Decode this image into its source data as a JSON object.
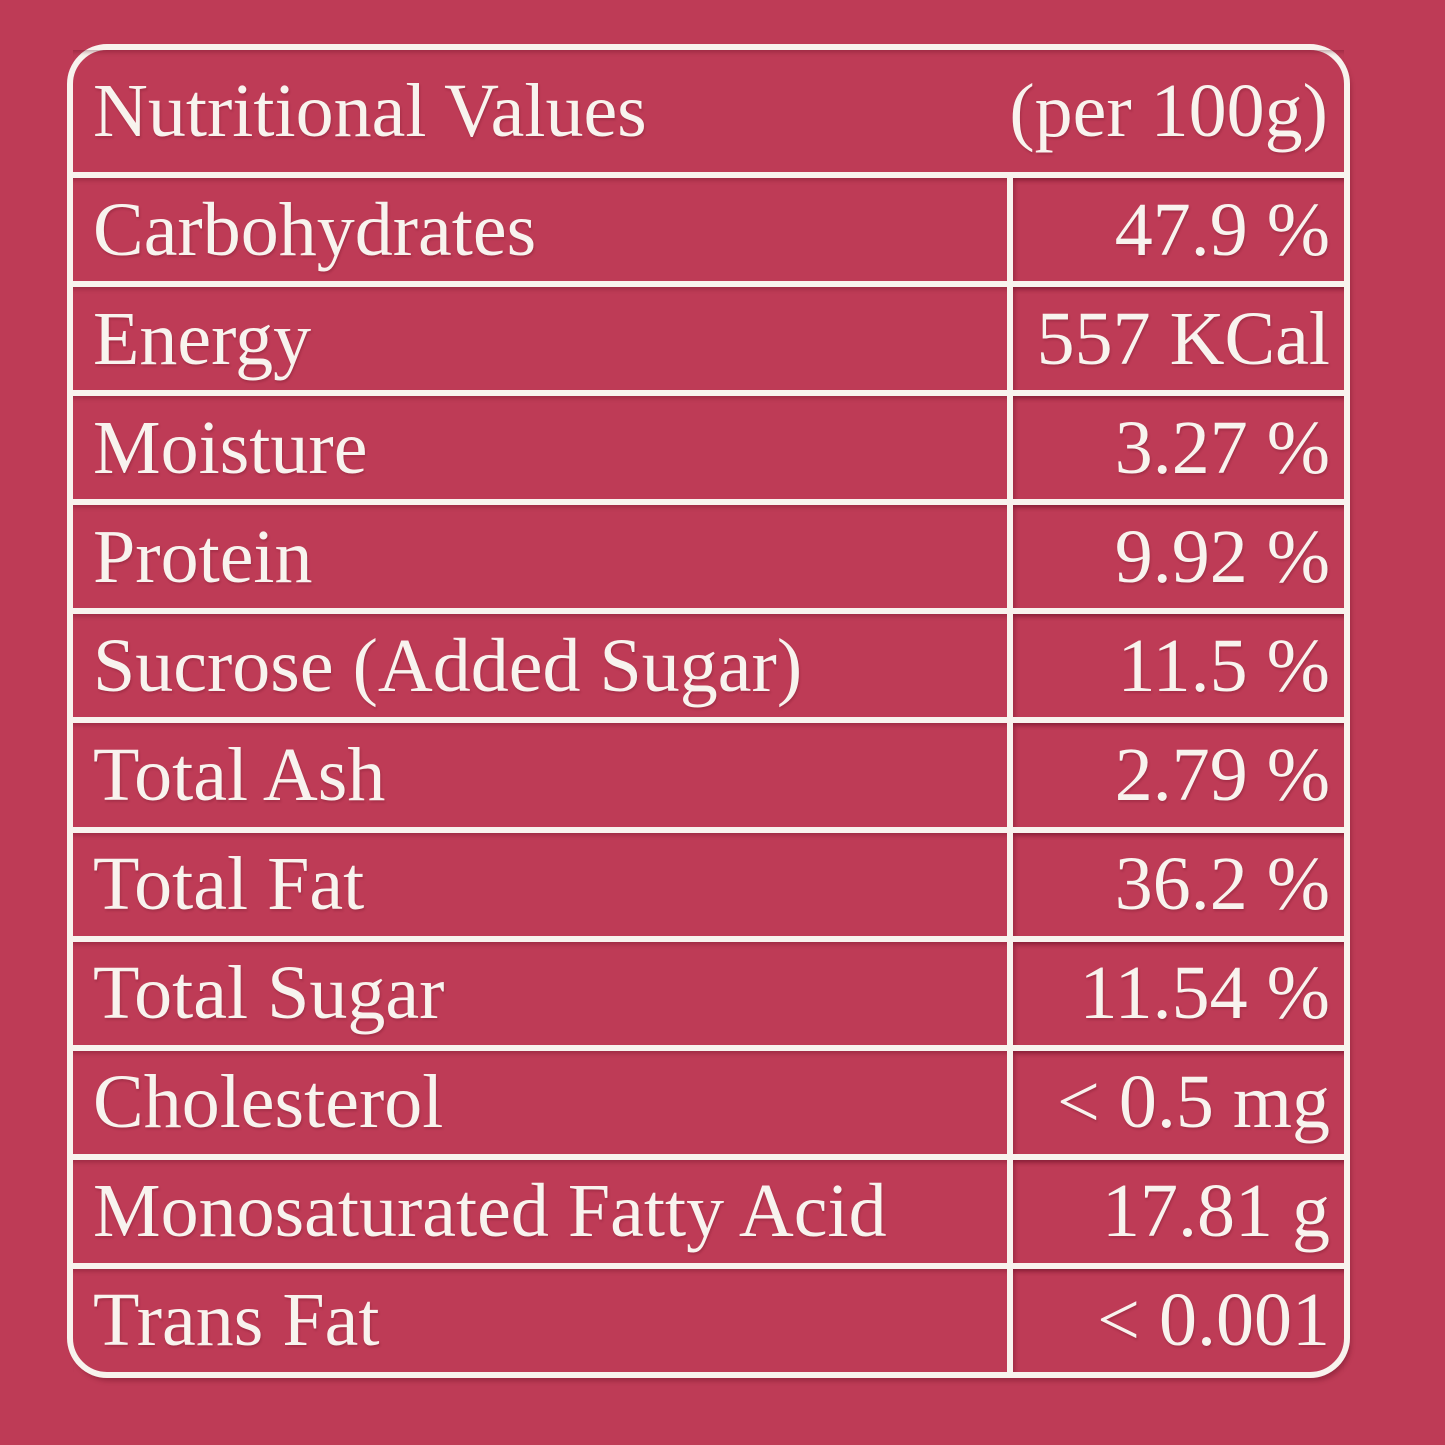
{
  "table": {
    "title": "Nutritional Values",
    "serving_note": "(per 100g)",
    "rows": [
      {
        "label": "Carbohydrates",
        "value": "47.9 %"
      },
      {
        "label": "Energy",
        "value": "557 KCal"
      },
      {
        "label": "Moisture",
        "value": "3.27 %"
      },
      {
        "label": "Protein",
        "value": "9.92 %"
      },
      {
        "label": "Sucrose (Added Sugar)",
        "value": "11.5 %"
      },
      {
        "label": "Total Ash",
        "value": "2.79 %"
      },
      {
        "label": "Total Fat",
        "value": "36.2 %"
      },
      {
        "label": "Total Sugar",
        "value": "11.54 %"
      },
      {
        "label": "Cholesterol",
        "value": "< 0.5 mg"
      },
      {
        "label": "Monosaturated Fatty Acid",
        "value": "17.81 g"
      },
      {
        "label": "Trans Fat",
        "value": "< 0.001"
      }
    ]
  },
  "colors": {
    "background": "#be3b56",
    "foreground": "#f8f3ee"
  }
}
